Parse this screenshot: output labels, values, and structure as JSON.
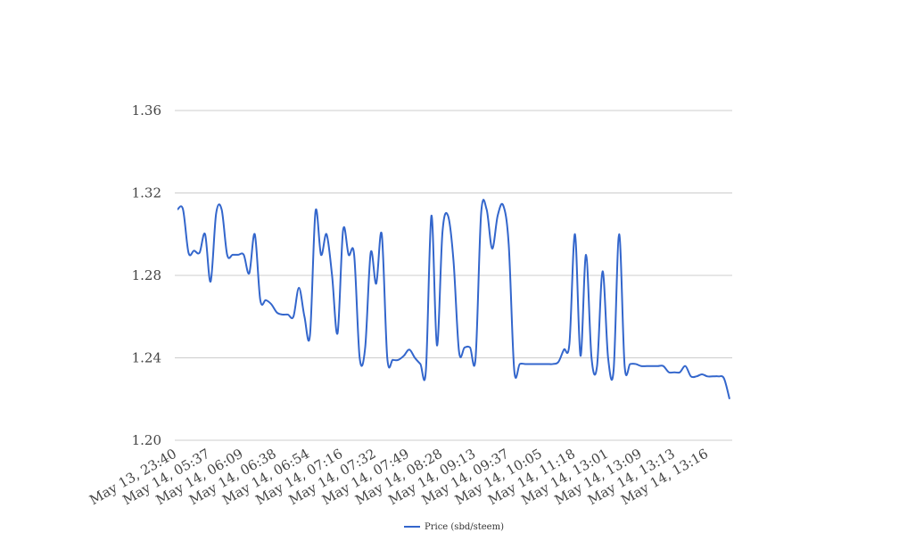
{
  "chart_data": {
    "type": "line",
    "title": "",
    "xlabel": "",
    "ylabel": "",
    "ylim": [
      1.2,
      1.36
    ],
    "yticks": [
      "1.20",
      "1.24",
      "1.28",
      "1.32",
      "1.36"
    ],
    "xtick_labels": [
      "May 13, 23:40",
      "May 14, 05:37",
      "May 14, 06:09",
      "May 14, 06:38",
      "May 14, 06:54",
      "May 14, 07:16",
      "May 14, 07:32",
      "May 14, 07:49",
      "May 14, 08:28",
      "May 14, 09:13",
      "May 14, 09:37",
      "May 14, 10:05",
      "May 14, 11:18",
      "May 14, 13:01",
      "May 14, 13:09",
      "May 14, 13:13",
      "May 14, 13:16"
    ],
    "grid": true,
    "legend_position": "bottom",
    "series": [
      {
        "name": "Price (sbd/steem)",
        "color": "#3366cc",
        "values": [
          1.312,
          1.312,
          1.291,
          1.292,
          1.291,
          1.3,
          1.277,
          1.31,
          1.312,
          1.29,
          1.29,
          1.29,
          1.29,
          1.281,
          1.3,
          1.268,
          1.268,
          1.266,
          1.262,
          1.261,
          1.261,
          1.26,
          1.274,
          1.26,
          1.251,
          1.311,
          1.29,
          1.3,
          1.28,
          1.252,
          1.302,
          1.29,
          1.29,
          1.24,
          1.245,
          1.291,
          1.276,
          1.3,
          1.24,
          1.239,
          1.239,
          1.241,
          1.244,
          1.24,
          1.237,
          1.234,
          1.309,
          1.246,
          1.301,
          1.309,
          1.287,
          1.243,
          1.245,
          1.245,
          1.24,
          1.31,
          1.312,
          1.293,
          1.309,
          1.314,
          1.295,
          1.234,
          1.237,
          1.237,
          1.237,
          1.237,
          1.237,
          1.237,
          1.237,
          1.238,
          1.244,
          1.247,
          1.3,
          1.241,
          1.29,
          1.24,
          1.236,
          1.282,
          1.24,
          1.234,
          1.3,
          1.236,
          1.237,
          1.237,
          1.236,
          1.236,
          1.236,
          1.236,
          1.236,
          1.233,
          1.233,
          1.233,
          1.236,
          1.231,
          1.231,
          1.232,
          1.231,
          1.231,
          1.231,
          1.23,
          1.22
        ]
      }
    ]
  }
}
